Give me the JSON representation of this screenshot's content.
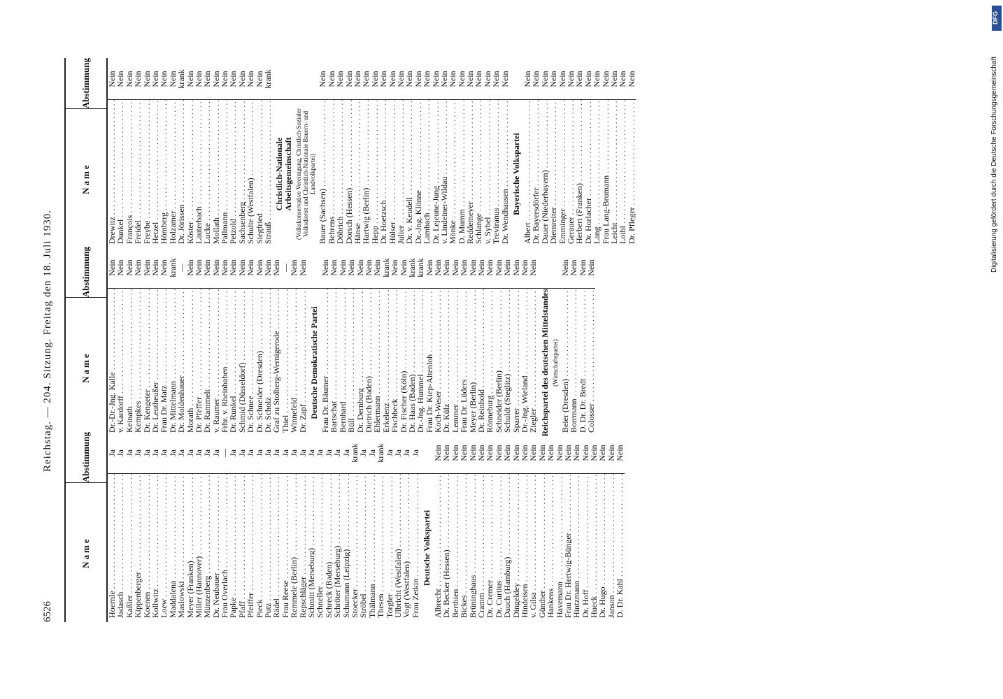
{
  "header": {
    "page": "6526",
    "title": "Reichstag. — 204. Sitzung. Freitag den 18. Juli 1930."
  },
  "footer_note": "Digitalisierung gefördert durch die Deutsche Forschungsgemeinschaft",
  "logo": "DFG",
  "columns": [
    {
      "name_heading": "Name",
      "vote_heading": "Abstimmung",
      "rows": [
        {
          "name": "Hoernle",
          "vote": "Ja"
        },
        {
          "name": "Jadasch",
          "vote": "Ja"
        },
        {
          "name": "Kaßler",
          "vote": "Ja"
        },
        {
          "name": "Kippenberger",
          "vote": "Ja"
        },
        {
          "name": "Koenen",
          "vote": "Ja"
        },
        {
          "name": "Kollwitz",
          "vote": "Ja"
        },
        {
          "name": "Loew",
          "vote": "Ja"
        },
        {
          "name": "Maddalena",
          "vote": "Ja"
        },
        {
          "name": "Maslowski",
          "vote": "Ja"
        },
        {
          "name": "Meyer (Franken)",
          "vote": "Ja"
        },
        {
          "name": "Miller (Hannover)",
          "vote": "Ja"
        },
        {
          "name": "Münzenberg",
          "vote": "Ja"
        },
        {
          "name": "Dr. Neubauer",
          "vote": "Ja"
        },
        {
          "name": "Frau Overlach",
          "vote": "—"
        },
        {
          "name": "Papke",
          "vote": "Ja"
        },
        {
          "name": "Pfaff",
          "vote": "Ja"
        },
        {
          "name": "Pfeiffer",
          "vote": "Ja"
        },
        {
          "name": "Pieck",
          "vote": "Ja"
        },
        {
          "name": "Putz",
          "vote": "Ja"
        },
        {
          "name": "Rädel",
          "vote": "Ja"
        },
        {
          "name": "Frau Reese",
          "vote": "Ja"
        },
        {
          "name": "Remmele (Berlin)",
          "vote": "Ja"
        },
        {
          "name": "Repschläger",
          "vote": "Ja"
        },
        {
          "name": "Schmitt (Merseburg)",
          "vote": "Ja"
        },
        {
          "name": "Schneller",
          "vote": "Ja"
        },
        {
          "name": "Schreck (Baden)",
          "vote": "Ja"
        },
        {
          "name": "Schröter (Merseburg)",
          "vote": "Ja"
        },
        {
          "name": "Schumann (Leipzig)",
          "vote": "Ja"
        },
        {
          "name": "Stoecker",
          "vote": "krank"
        },
        {
          "name": "Ströbel",
          "vote": "Ja"
        },
        {
          "name": "Thälmann",
          "vote": "Ja"
        },
        {
          "name": "Thesen",
          "vote": "krank"
        },
        {
          "name": "Torgler",
          "vote": "Ja"
        },
        {
          "name": "Ulbricht (Westfalen)",
          "vote": "Ja"
        },
        {
          "name": "Vogt (Westfalen)",
          "vote": "Ja"
        },
        {
          "name": "Frau Zetkin",
          "vote": "Ja"
        },
        {
          "group": "Deutsche Volkspartei"
        },
        {
          "name": "Albrecht",
          "vote": "Nein"
        },
        {
          "name": "Dr. Becker (Hessen)",
          "vote": "Nein"
        },
        {
          "name": "Berthien",
          "vote": "Nein"
        },
        {
          "name": "Bickes",
          "vote": "Nein"
        },
        {
          "name": "Brüninghaus",
          "vote": "Nein"
        },
        {
          "name": "Cramm",
          "vote": "Nein"
        },
        {
          "name": "Dr. Cremer",
          "vote": "Nein"
        },
        {
          "name": "Dr. Curtius",
          "vote": "Nein"
        },
        {
          "name": "Dauch (Hamburg)",
          "vote": "Nein"
        },
        {
          "name": "Dingeldey",
          "vote": "Nein"
        },
        {
          "name": "Hindeisen",
          "vote": "Nein"
        },
        {
          "name": "v. Gilsa",
          "vote": "Nein"
        },
        {
          "name": "Günther",
          "vote": "Nein"
        },
        {
          "name": "Hankens",
          "vote": "Nein"
        },
        {
          "name": "Havemann",
          "vote": "Nein"
        },
        {
          "name": "Frau Dr. Hertwig-Bünger",
          "vote": "Nein"
        },
        {
          "name": "Hintzmann",
          "vote": "Nein"
        },
        {
          "name": "Dr. Hoff",
          "vote": "Nein"
        },
        {
          "name": "Hueck",
          "vote": "Nein"
        },
        {
          "name": "Dr. Hugo",
          "vote": "Nein"
        },
        {
          "name": "Janson",
          "vote": "Nein"
        },
        {
          "name": "D. Dr. Kahl",
          "vote": "Nein"
        }
      ]
    },
    {
      "name_heading": "Name",
      "vote_heading": "Abstimmung",
      "rows": [
        {
          "name": "Dr.-Dr.-Jng. Kalle",
          "vote": "Nein"
        },
        {
          "name": "v. Kardorff",
          "vote": "Nein"
        },
        {
          "name": "Keinath",
          "vote": "Nein"
        },
        {
          "name": "Kempkes",
          "vote": "Nein"
        },
        {
          "name": "Dr. Kengeter",
          "vote": "Nein"
        },
        {
          "name": "Dr. Leutheußer",
          "vote": "Nein"
        },
        {
          "name": "Frau Dr. Matz",
          "vote": "Nein"
        },
        {
          "name": "Dr. Mittelmann",
          "vote": "krank"
        },
        {
          "name": "Dr. Moldenhauer",
          "vote": "—"
        },
        {
          "name": "Morath",
          "vote": "Nein"
        },
        {
          "name": "Dr. Pfeffer",
          "vote": "Nein"
        },
        {
          "name": "Dr. Rammelt",
          "vote": "Nein"
        },
        {
          "name": "v. Raumer",
          "vote": "Nein"
        },
        {
          "name": "Frhr. v. Rheinbaben",
          "vote": "Nein"
        },
        {
          "name": "Dr. Runkel",
          "vote": "Nein"
        },
        {
          "name": "Schmid (Düsseldorf)",
          "vote": "Nein"
        },
        {
          "name": "Dr. Schnee",
          "vote": "Nein"
        },
        {
          "name": "Dr. Schneider (Dresden)",
          "vote": "Nein"
        },
        {
          "name": "Dr. Scholz",
          "vote": "Nein"
        },
        {
          "name": "Graf zu Stolberg-Wernigerode",
          "vote": "Nein"
        },
        {
          "name": "Thiel",
          "vote": "—"
        },
        {
          "name": "Winnefeld",
          "vote": "Nein"
        },
        {
          "name": "Dr. Zapf",
          "vote": "Nein"
        },
        {
          "group": "Deutsche Demokratische Partei"
        },
        {
          "name": "Frau Dr. Bäumer",
          "vote": "Nein"
        },
        {
          "name": "Bartschat",
          "vote": "Nein"
        },
        {
          "name": "Bernhard",
          "vote": "Nein"
        },
        {
          "name": "Büll",
          "vote": "Nein"
        },
        {
          "name": "Dr. Dernburg",
          "vote": "Nein"
        },
        {
          "name": "Dietrich (Baden)",
          "vote": "Nein"
        },
        {
          "name": "Ehlermann",
          "vote": "Nein"
        },
        {
          "name": "Erkelenz",
          "vote": "krank"
        },
        {
          "name": "Fischbeck",
          "vote": "Nein"
        },
        {
          "name": "Dr. Fischer (Köln)",
          "vote": "Nein"
        },
        {
          "name": "Dr. Haas (Baden)",
          "vote": "krank"
        },
        {
          "name": "Dr.-Jng. Hummel",
          "vote": "krank"
        },
        {
          "name": "Frau Dr. Kiep-Altenloh",
          "vote": "Nein"
        },
        {
          "name": "Koch-Weser",
          "vote": "Nein"
        },
        {
          "name": "Dr. Külz",
          "vote": "Nein"
        },
        {
          "name": "Lemmer",
          "vote": "Nein"
        },
        {
          "name": "Frau Dr. Lüders",
          "vote": "Nein"
        },
        {
          "name": "Meyer (Berlin)",
          "vote": "Nein"
        },
        {
          "name": "Dr. Reinhold",
          "vote": "Nein"
        },
        {
          "name": "Rönneburg",
          "vote": "Nein"
        },
        {
          "name": "Schneider (Berlin)",
          "vote": "Nein"
        },
        {
          "name": "Schuldt (Steglitz)",
          "vote": "Nein"
        },
        {
          "name": "Sparrer",
          "vote": "Nein"
        },
        {
          "name": "Dr.-Jng. Wieland",
          "vote": "Nein"
        },
        {
          "name": "Ziegler",
          "vote": "Nein"
        },
        {
          "group": "Reichspartei des deutschen Mittelstandes",
          "sub": "(Wirtschaftspartei)"
        },
        {
          "name": "Beier (Dresden)",
          "vote": "Nein"
        },
        {
          "name": "Borrmann",
          "vote": "Nein"
        },
        {
          "name": "D. Dr. Dr. Bredt",
          "vote": "Nein"
        },
        {
          "name": "Colosser",
          "vote": "Nein"
        }
      ]
    },
    {
      "name_heading": "Name",
      "vote_heading": "Abstimmung",
      "rows": [
        {
          "name": "Drewitz",
          "vote": "Nein"
        },
        {
          "name": "Dunkel",
          "vote": "Nein"
        },
        {
          "name": "François",
          "vote": "Nein"
        },
        {
          "name": "Freidel",
          "vote": "Nein"
        },
        {
          "name": "Freybe",
          "vote": "Nein"
        },
        {
          "name": "Hetzel",
          "vote": "Nein"
        },
        {
          "name": "Hömberg",
          "vote": "Nein"
        },
        {
          "name": "Holzamer",
          "vote": "Nein"
        },
        {
          "name": "Dr. Jörissen",
          "vote": "krank"
        },
        {
          "name": "Köster",
          "vote": "Nein"
        },
        {
          "name": "Lauterbach",
          "vote": "Nein"
        },
        {
          "name": "Lucke",
          "vote": "Nein"
        },
        {
          "name": "Mollath",
          "vote": "Nein"
        },
        {
          "name": "Pallmann",
          "vote": "Nein"
        },
        {
          "name": "Petzold",
          "vote": "Nein"
        },
        {
          "name": "Sachsenberg",
          "vote": "Nein"
        },
        {
          "name": "Schulte (Westfalen)",
          "vote": "Nein"
        },
        {
          "name": "Siegfried",
          "vote": "Nein"
        },
        {
          "name": "Strauß",
          "vote": "krank"
        },
        {
          "group": "Christlich-Nationale Arbeitsgemeinschaft",
          "sub": "(Volkskonservative Vereinigung, Christlich-Sozialer Volksdienst und Christlich-Nationale Bauern- und Landvolkpartei)"
        },
        {
          "name": "Bauer (Sachsen)",
          "vote": "Nein"
        },
        {
          "name": "Behrens",
          "vote": "Nein"
        },
        {
          "name": "Döbrich",
          "vote": "Nein"
        },
        {
          "name": "Dorsch (Hessen)",
          "vote": "Nein"
        },
        {
          "name": "Hänse",
          "vote": "Nein"
        },
        {
          "name": "Hartwig (Berlin)",
          "vote": "Nein"
        },
        {
          "name": "Hepp",
          "vote": "Nein"
        },
        {
          "name": "Dr. Hoetzsch",
          "vote": "Nein"
        },
        {
          "name": "Hülser",
          "vote": "Nein"
        },
        {
          "name": "Julier",
          "vote": "Nein"
        },
        {
          "name": "Dr. v. Keudell",
          "vote": "Nein"
        },
        {
          "name": "Dr.-Jng. Klönne",
          "vote": "Nein"
        },
        {
          "name": "Lambach",
          "vote": "Nein"
        },
        {
          "name": "Dr. Lejeune-Jung",
          "vote": "Nein"
        },
        {
          "name": "v. Lindeiner-Wildau",
          "vote": "Nein"
        },
        {
          "name": "Mönke",
          "vote": "Nein"
        },
        {
          "name": "D. Mumm",
          "vote": "Nein"
        },
        {
          "name": "Reddemeyer",
          "vote": "Nein"
        },
        {
          "name": "Schlange",
          "vote": "Nein"
        },
        {
          "name": "v. Sybel",
          "vote": "Nein"
        },
        {
          "name": "Treviranus",
          "vote": "Nein"
        },
        {
          "name": "Dr. Wendhausen",
          "vote": "Nein"
        },
        {
          "group": "Bayerische Volkspartei"
        },
        {
          "name": "Albert",
          "vote": "Nein"
        },
        {
          "name": "Dr. Bayersdörfer",
          "vote": "Nein"
        },
        {
          "name": "Dauer (Niederbayern)",
          "vote": "Nein"
        },
        {
          "name": "Diernreiter",
          "vote": "Nein"
        },
        {
          "name": "Emminger",
          "vote": "Nein"
        },
        {
          "name": "Gerauer",
          "vote": "Nein"
        },
        {
          "name": "Herbert (Franken)",
          "vote": "Nein"
        },
        {
          "name": "Dr. Horlacher",
          "vote": "Nein"
        },
        {
          "name": "Lang",
          "vote": "Nein"
        },
        {
          "name": "Frau Lang-Brumann",
          "vote": "Nein"
        },
        {
          "name": "Leicht",
          "vote": "Nein"
        },
        {
          "name": "Loibl",
          "vote": "Nein"
        },
        {
          "name": "Dr. Pfleger",
          "vote": "Nein"
        }
      ]
    }
  ]
}
